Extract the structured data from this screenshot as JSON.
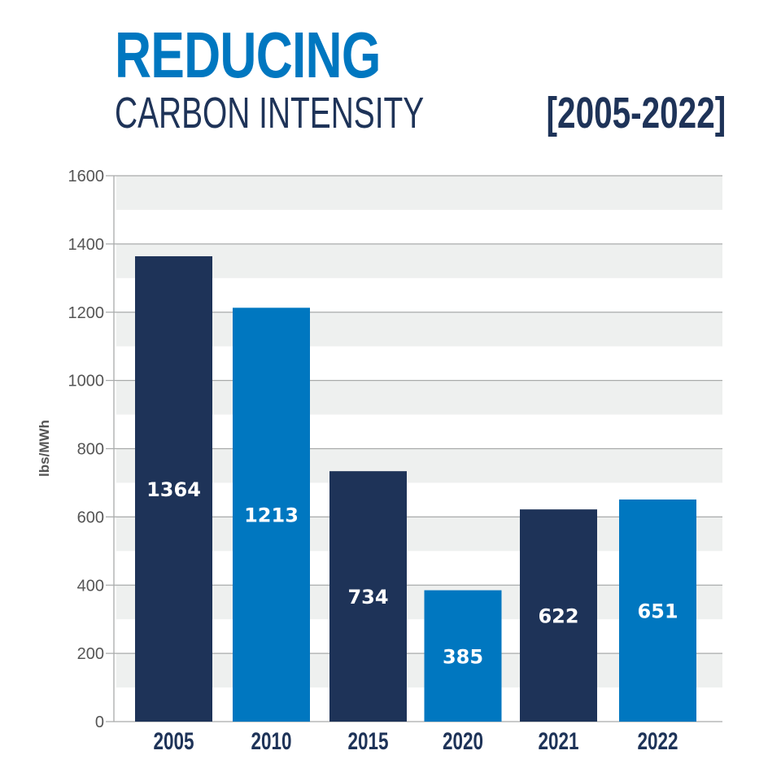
{
  "chart_data": {
    "type": "bar",
    "title": "REDUCING",
    "subtitle": "CARBON INTENSITY",
    "period": "[2005-2022]",
    "ylabel": "lbs/MWh",
    "xlabel": "",
    "ylim": [
      0,
      1600
    ],
    "yticks": [
      0,
      200,
      400,
      600,
      800,
      1000,
      1200,
      1400,
      1600
    ],
    "grid": true,
    "categories": [
      "2005",
      "2010",
      "2015",
      "2020",
      "2021",
      "2022"
    ],
    "values": [
      1364,
      1213,
      734,
      385,
      622,
      651
    ],
    "bar_colors": [
      "#1e3358",
      "#0077c0",
      "#1e3358",
      "#0077c0",
      "#1e3358",
      "#0077c0"
    ],
    "band_color": "#eef0ef",
    "title_color": "#0077c0",
    "text_color": "#1e3358"
  }
}
